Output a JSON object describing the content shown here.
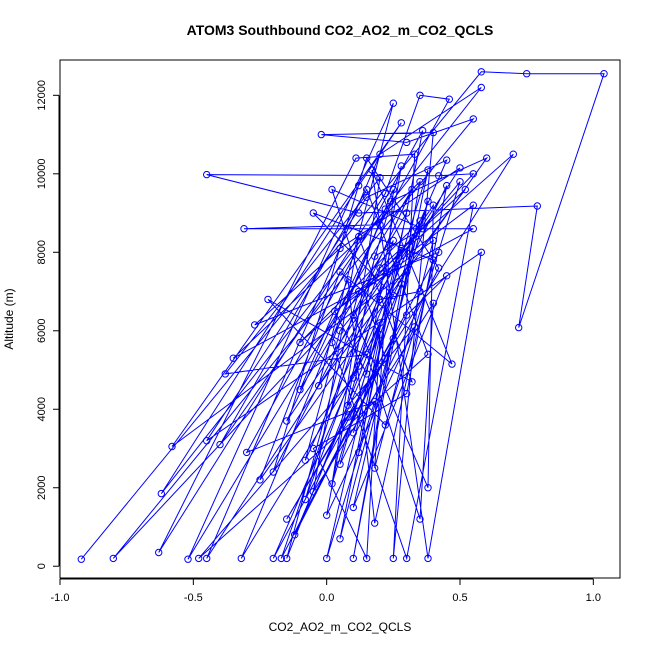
{
  "chart_data": {
    "type": "line",
    "title": "ATOM3 Southbound CO2_AO2_m_CO2_QCLS",
    "xlabel": "CO2_AO2_m_CO2_QCLS",
    "ylabel": "Altitude (m)",
    "xlim": [
      -1.0,
      1.1
    ],
    "ylim": [
      -300,
      12900
    ],
    "xticks": [
      -1.0,
      -0.5,
      0.0,
      0.5,
      1.0
    ],
    "xtick_labels": [
      "-1.0",
      "-0.5",
      "0.0",
      "0.5",
      "1.0"
    ],
    "yticks": [
      0,
      2000,
      4000,
      6000,
      8000,
      10000,
      12000
    ],
    "ytick_labels": [
      "0",
      "2000",
      "4000",
      "6000",
      "8000",
      "10000",
      "12000"
    ],
    "grid": false,
    "legend": "none",
    "series_color": "#0000ff",
    "marker": "open-circle",
    "points": [
      [
        -0.92,
        180
      ],
      [
        0.58,
        12600
      ],
      [
        0.75,
        12550
      ],
      [
        1.04,
        12550
      ],
      [
        0.72,
        6080
      ],
      [
        0.79,
        9180
      ],
      [
        0.12,
        9000
      ],
      [
        -0.45,
        9980
      ],
      [
        0.42,
        9950
      ],
      [
        0.55,
        10000
      ],
      [
        -0.8,
        200
      ],
      [
        0.55,
        11400
      ],
      [
        0.3,
        10800
      ],
      [
        -0.02,
        11000
      ],
      [
        0.4,
        11050
      ],
      [
        0.25,
        200
      ],
      [
        0.33,
        10500
      ],
      [
        0.11,
        10400
      ],
      [
        -0.63,
        350
      ],
      [
        0.22,
        9500
      ],
      [
        0.35,
        12000
      ],
      [
        0.46,
        11900
      ],
      [
        0.2,
        8700
      ],
      [
        -0.31,
        8600
      ],
      [
        0.55,
        8600
      ],
      [
        -0.35,
        5300
      ],
      [
        0.35,
        9800
      ],
      [
        0.1,
        200
      ],
      [
        0.3,
        7500
      ],
      [
        -0.58,
        3050
      ],
      [
        0.28,
        11300
      ],
      [
        0.12,
        9700
      ],
      [
        -0.62,
        1850
      ],
      [
        0.58,
        12200
      ],
      [
        0.2,
        10500
      ],
      [
        -0.45,
        200
      ],
      [
        0.5,
        10150
      ],
      [
        0.05,
        8100
      ],
      [
        -0.27,
        6150
      ],
      [
        0.42,
        8000
      ],
      [
        -0.2,
        200
      ],
      [
        0.45,
        10350
      ],
      [
        0.15,
        9400
      ],
      [
        -0.45,
        3200
      ],
      [
        0.58,
        8000
      ],
      [
        0.38,
        200
      ],
      [
        0.17,
        10100
      ],
      [
        0.47,
        5150
      ],
      [
        0.05,
        7500
      ],
      [
        -0.25,
        2200
      ],
      [
        0.6,
        10400
      ],
      [
        0.24,
        9300
      ],
      [
        -0.15,
        3700
      ],
      [
        0.4,
        9200
      ],
      [
        0.38,
        2000
      ],
      [
        0.1,
        6400
      ],
      [
        0.32,
        9600
      ],
      [
        -0.52,
        180
      ],
      [
        0.25,
        11800
      ],
      [
        -0.03,
        4600
      ],
      [
        0.52,
        9600
      ],
      [
        0.2,
        7600
      ],
      [
        -0.17,
        200
      ],
      [
        0.3,
        6400
      ],
      [
        0.45,
        7400
      ],
      [
        0.1,
        1500
      ],
      [
        0.35,
        8800
      ],
      [
        -0.1,
        5700
      ],
      [
        0.7,
        10500
      ],
      [
        0.08,
        3800
      ],
      [
        -0.15,
        1200
      ],
      [
        0.25,
        5800
      ],
      [
        0.38,
        10100
      ],
      [
        0.02,
        2100
      ],
      [
        0.2,
        9900
      ],
      [
        -0.38,
        4900
      ],
      [
        0.15,
        5400
      ],
      [
        0.35,
        1200
      ],
      [
        0.4,
        6700
      ],
      [
        -0.05,
        1900
      ],
      [
        0.12,
        8400
      ],
      [
        0.32,
        4700
      ],
      [
        -0.22,
        6800
      ],
      [
        0.22,
        3600
      ],
      [
        0.5,
        9800
      ],
      [
        0.05,
        6000
      ],
      [
        -0.08,
        2700
      ],
      [
        0.28,
        8100
      ],
      [
        0.12,
        2900
      ],
      [
        0.36,
        11100
      ],
      [
        -0.3,
        2900
      ],
      [
        0.18,
        4200
      ],
      [
        0.0,
        200
      ],
      [
        0.3,
        9000
      ],
      [
        -0.1,
        4500
      ],
      [
        0.08,
        7300
      ],
      [
        0.18,
        1100
      ],
      [
        0.4,
        7800
      ],
      [
        -0.05,
        9000
      ],
      [
        0.25,
        6900
      ],
      [
        0.1,
        4800
      ],
      [
        -0.48,
        200
      ],
      [
        0.38,
        5400
      ],
      [
        0.15,
        9600
      ],
      [
        -0.4,
        3100
      ],
      [
        0.22,
        9100
      ],
      [
        0.02,
        5700
      ],
      [
        0.3,
        200
      ],
      [
        0.55,
        9200
      ],
      [
        0.12,
        7000
      ],
      [
        -0.15,
        200
      ],
      [
        0.2,
        6200
      ],
      [
        0.05,
        2600
      ],
      [
        0.42,
        7600
      ],
      [
        0.15,
        10400
      ],
      [
        -0.2,
        2400
      ],
      [
        0.25,
        8300
      ],
      [
        0.08,
        4100
      ],
      [
        0.33,
        6100
      ],
      [
        0.0,
        1300
      ],
      [
        0.18,
        7900
      ],
      [
        0.36,
        8600
      ],
      [
        0.02,
        9600
      ],
      [
        0.22,
        5300
      ],
      [
        -0.12,
        800
      ],
      [
        0.28,
        7200
      ],
      [
        0.1,
        3400
      ],
      [
        0.38,
        9300
      ],
      [
        0.05,
        700
      ],
      [
        0.2,
        5900
      ],
      [
        0.15,
        200
      ],
      [
        -0.05,
        3000
      ],
      [
        0.3,
        4400
      ],
      [
        0.45,
        9700
      ],
      [
        0.12,
        5100
      ],
      [
        -0.32,
        200
      ],
      [
        0.25,
        9600
      ],
      [
        0.18,
        2500
      ],
      [
        0.4,
        8300
      ],
      [
        0.03,
        6500
      ],
      [
        0.15,
        4900
      ],
      [
        0.28,
        10200
      ],
      [
        -0.08,
        1700
      ],
      [
        0.2,
        6800
      ],
      [
        0.35,
        7000
      ]
    ]
  }
}
